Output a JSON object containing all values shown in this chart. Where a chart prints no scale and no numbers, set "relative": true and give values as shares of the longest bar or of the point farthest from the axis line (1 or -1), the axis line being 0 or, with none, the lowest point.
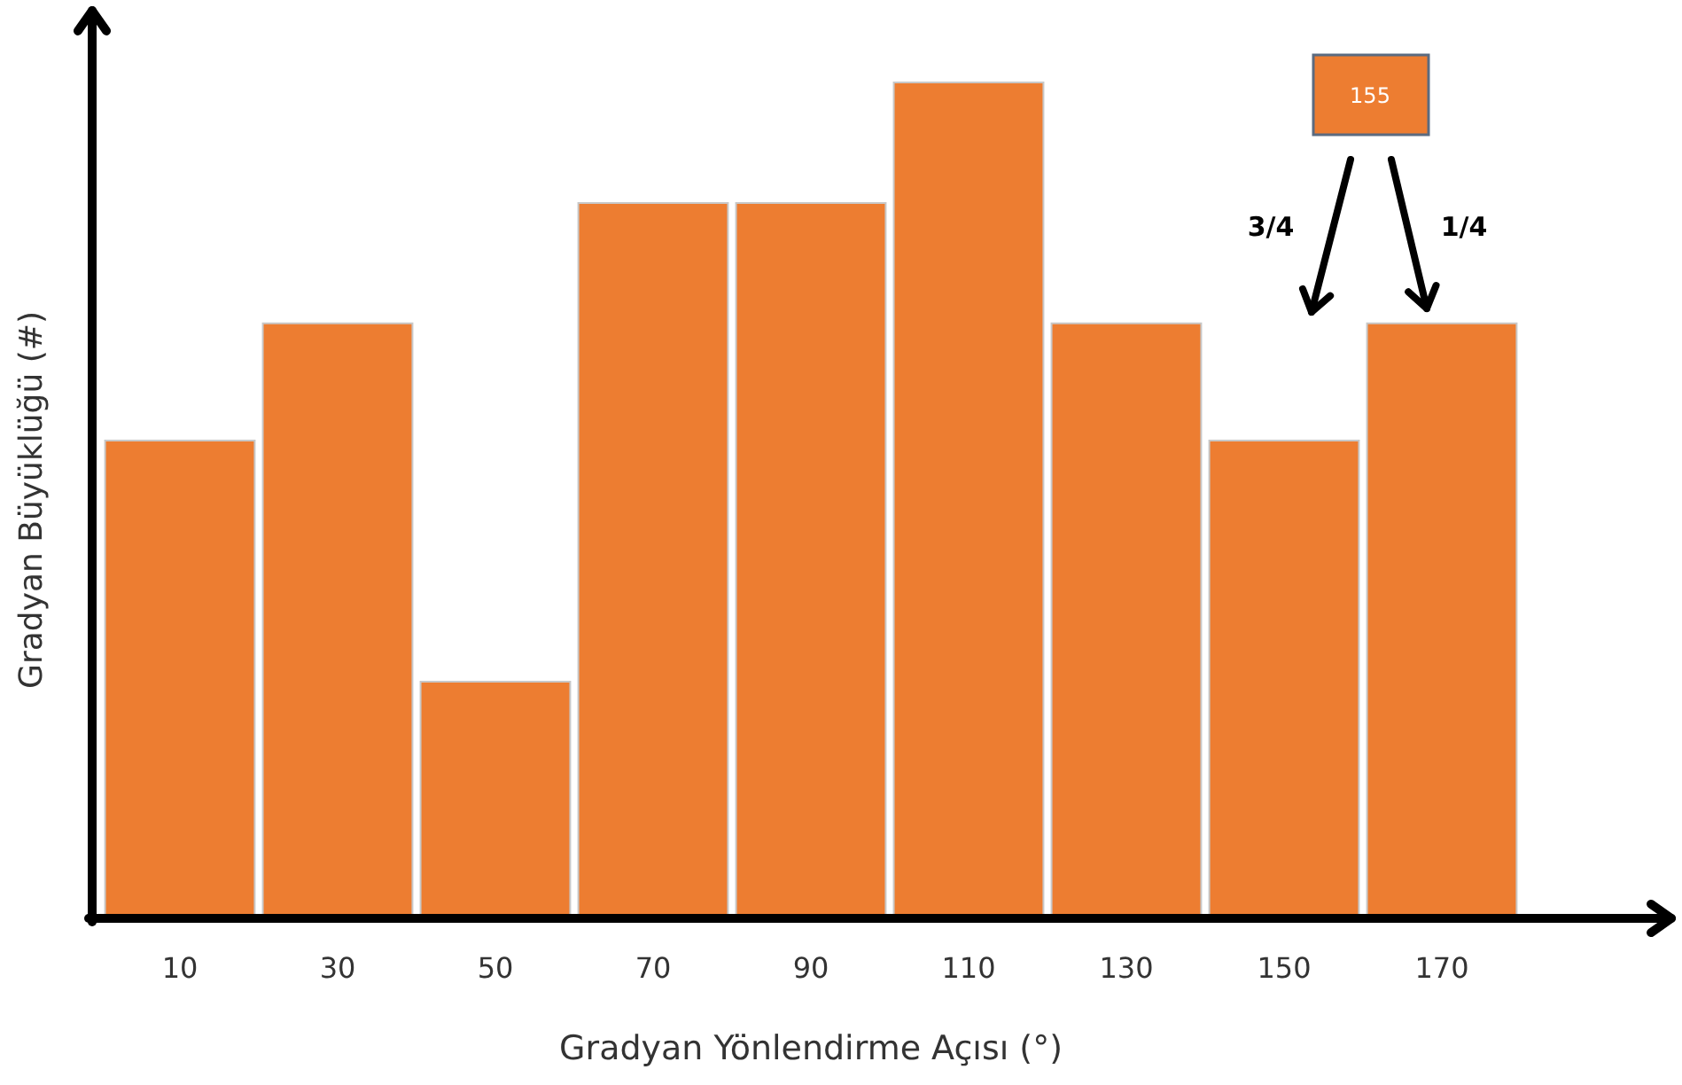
{
  "chart_data": {
    "type": "bar",
    "xlabel": "Gradyan Yönlendirme Açısı (°)",
    "ylabel": "Gradyan Büyüklüğü (#)",
    "categories": [
      "10",
      "30",
      "50",
      "70",
      "90",
      "110",
      "130",
      "150",
      "170"
    ],
    "values": [
      0.572,
      0.712,
      0.284,
      0.856,
      0.856,
      1,
      0.712,
      0.572,
      0.712
    ],
    "color": "#ed7d31",
    "relative": true,
    "annotations": [
      "155",
      "3/4",
      "1/4"
    ]
  }
}
